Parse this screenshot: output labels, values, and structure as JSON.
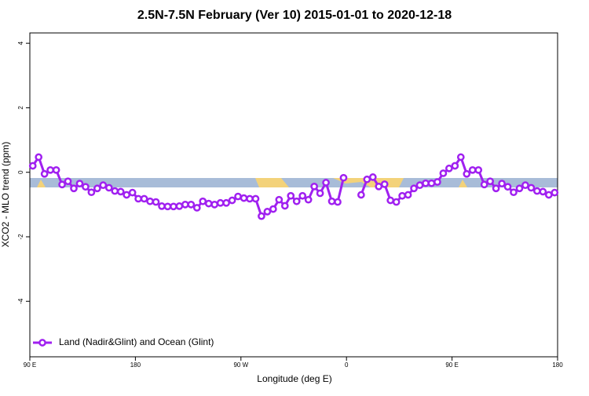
{
  "chart_data": {
    "type": "line",
    "title": "2.5N-7.5N February (Ver 10)   2015-01-01 to 2020-12-18",
    "xlabel": "Longitude (deg E)",
    "ylabel": "XCO2 - MLO trend (ppm)",
    "x": [
      92.5,
      97.5,
      102.5,
      107.5,
      112.5,
      117.5,
      122.5,
      127.5,
      132.5,
      137.5,
      142.5,
      147.5,
      152.5,
      157.5,
      162.5,
      167.5,
      172.5,
      177.5,
      182.5,
      187.5,
      192.5,
      197.5,
      202.5,
      207.5,
      212.5,
      217.5,
      222.5,
      227.5,
      232.5,
      237.5,
      242.5,
      247.5,
      252.5,
      257.5,
      262.5,
      267.5,
      272.5,
      277.5,
      282.5,
      287.5,
      292.5,
      297.5,
      302.5,
      307.5,
      312.5,
      317.5,
      322.5,
      327.5,
      332.5,
      337.5,
      342.5,
      347.5,
      352.5,
      357.5,
      362.5,
      367.5,
      372.5,
      377.5,
      382.5,
      387.5,
      392.5,
      397.5,
      402.5,
      407.5,
      412.5,
      417.5,
      422.5,
      427.5,
      432.5,
      437.5,
      442.5,
      447.5,
      452.5,
      457.5,
      462.5,
      467.5,
      472.5,
      477.5,
      482.5,
      487.5,
      492.5,
      497.5,
      502.5,
      507.5,
      512.5,
      517.5,
      522.5,
      527.5,
      532.5,
      537.5
    ],
    "series": [
      {
        "name": "Land (Nadir&Glint) and Ocean (Glint)",
        "color": "#a020f0",
        "values": [
          0.2,
          0.47,
          -0.05,
          0.07,
          0.07,
          -0.38,
          -0.28,
          -0.5,
          -0.35,
          -0.45,
          -0.62,
          -0.5,
          -0.4,
          -0.48,
          -0.58,
          -0.6,
          -0.7,
          -0.63,
          -0.82,
          -0.82,
          -0.9,
          -0.92,
          -1.05,
          -1.06,
          -1.06,
          -1.05,
          -1.0,
          -1.0,
          -1.1,
          -0.9,
          -0.97,
          -1.0,
          -0.95,
          -0.95,
          -0.87,
          -0.75,
          -0.8,
          -0.82,
          -0.82,
          -1.36,
          -1.22,
          -1.14,
          -0.85,
          -1.04,
          -0.73,
          -0.9,
          -0.73,
          -0.85,
          -0.44,
          -0.65,
          -0.32,
          -0.9,
          -0.92,
          -0.17,
          null,
          null,
          -0.7,
          -0.22,
          -0.15,
          -0.44,
          -0.37,
          -0.87,
          -0.92,
          -0.73,
          -0.7,
          -0.5,
          -0.4,
          -0.34,
          -0.34,
          -0.3,
          -0.03,
          0.12,
          0.2,
          0.47,
          -0.05,
          0.07,
          0.07,
          -0.38,
          -0.28,
          -0.5,
          -0.35,
          -0.45,
          -0.62,
          -0.5,
          -0.4,
          -0.48,
          -0.58,
          -0.6,
          -0.7,
          -0.63
        ]
      }
    ],
    "xlim": [
      90,
      540
    ],
    "xticks": [
      {
        "value": 90,
        "label": "90 E"
      },
      180,
      {
        "value": 270,
        "label": "90 W"
      },
      {
        "value": 360,
        "label": "0"
      },
      {
        "value": 450,
        "label": "90 E"
      },
      {
        "value": 540,
        "label": "180"
      }
    ],
    "ylim": [
      -5.72,
      4.32
    ],
    "yticks": [
      -4,
      -2,
      0,
      2,
      4
    ],
    "legend": "bottom-left"
  }
}
